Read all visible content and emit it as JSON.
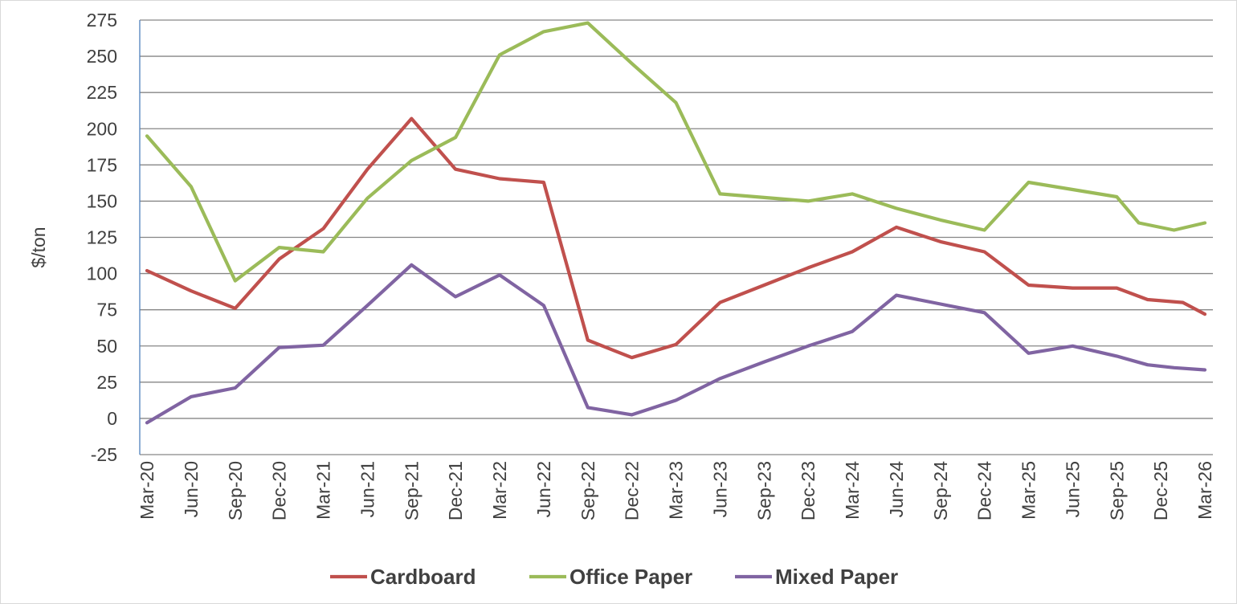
{
  "chart_data": {
    "type": "line",
    "title": "",
    "xlabel": "",
    "ylabel": "$/ton",
    "ylim": [
      -25,
      275
    ],
    "yticks": [
      -25,
      0,
      25,
      50,
      75,
      100,
      125,
      150,
      175,
      200,
      225,
      250,
      275
    ],
    "grid": true,
    "legend_position": "bottom",
    "categories": [
      "Mar-20",
      "Jun-20",
      "Sep-20",
      "Dec-20",
      "Mar-21",
      "Jun-21",
      "Sep-21",
      "Dec-21",
      "Mar-22",
      "Jun-22",
      "Sep-22",
      "Dec-22",
      "Mar-23",
      "Jun-23",
      "Sep-23",
      "Dec-23",
      "Mar-24",
      "Jun-24",
      "Sep-24",
      "Dec-24",
      "Mar-25",
      "Jun-25",
      "Sep-25",
      "Dec-25",
      "Mar-26"
    ],
    "x_index": [
      0,
      1,
      2,
      3,
      4,
      5,
      6,
      7,
      8,
      9,
      10,
      11,
      12,
      13,
      14,
      15,
      16,
      17,
      18,
      19,
      20,
      21,
      22,
      23,
      24
    ],
    "series": [
      {
        "name": "Cardboard",
        "color": "#c0504d",
        "points": [
          [
            0,
            102
          ],
          [
            1,
            88
          ],
          [
            2,
            76
          ],
          [
            3,
            110
          ],
          [
            4,
            131
          ],
          [
            5,
            172
          ],
          [
            6,
            207
          ],
          [
            7,
            172
          ],
          [
            8,
            165.5
          ],
          [
            9,
            163
          ],
          [
            10,
            54
          ],
          [
            11,
            42
          ],
          [
            12,
            51
          ],
          [
            13,
            80
          ],
          [
            14,
            92
          ],
          [
            15,
            104
          ],
          [
            16,
            115
          ],
          [
            17,
            132
          ],
          [
            18,
            122
          ],
          [
            19,
            115
          ],
          [
            20,
            92
          ],
          [
            21,
            90
          ],
          [
            22,
            90
          ],
          [
            22.7,
            82
          ],
          [
            23.5,
            80
          ],
          [
            24,
            72
          ]
        ]
      },
      {
        "name": "Office Paper",
        "color": "#9bbb59",
        "points": [
          [
            0,
            195
          ],
          [
            1,
            160
          ],
          [
            2,
            95
          ],
          [
            3,
            118
          ],
          [
            4,
            115
          ],
          [
            5,
            152
          ],
          [
            6,
            178
          ],
          [
            7,
            194
          ],
          [
            8,
            251
          ],
          [
            9,
            267
          ],
          [
            10,
            273
          ],
          [
            11,
            245
          ],
          [
            12,
            218
          ],
          [
            13,
            155
          ],
          [
            14,
            152.5
          ],
          [
            15,
            150
          ],
          [
            16,
            155
          ],
          [
            17,
            145
          ],
          [
            18,
            137
          ],
          [
            19,
            130
          ],
          [
            20,
            163
          ],
          [
            21,
            158
          ],
          [
            22,
            153
          ],
          [
            22.5,
            135
          ],
          [
            23.3,
            130
          ],
          [
            24,
            135
          ]
        ]
      },
      {
        "name": "Mixed Paper",
        "color": "#8064a2",
        "points": [
          [
            0,
            -3
          ],
          [
            1,
            15
          ],
          [
            2,
            21
          ],
          [
            3,
            49
          ],
          [
            4,
            50.5
          ],
          [
            5,
            78
          ],
          [
            6,
            106
          ],
          [
            7,
            84
          ],
          [
            8,
            99
          ],
          [
            9,
            78
          ],
          [
            10,
            7.5
          ],
          [
            11,
            2.5
          ],
          [
            12,
            12.5
          ],
          [
            13,
            27.5
          ],
          [
            14,
            39
          ],
          [
            15,
            50
          ],
          [
            16,
            60
          ],
          [
            17,
            85
          ],
          [
            18,
            79
          ],
          [
            19,
            73
          ],
          [
            20,
            45
          ],
          [
            21,
            50
          ],
          [
            22,
            43
          ],
          [
            22.7,
            37
          ],
          [
            23.3,
            35
          ],
          [
            24,
            33.5
          ]
        ]
      }
    ]
  }
}
